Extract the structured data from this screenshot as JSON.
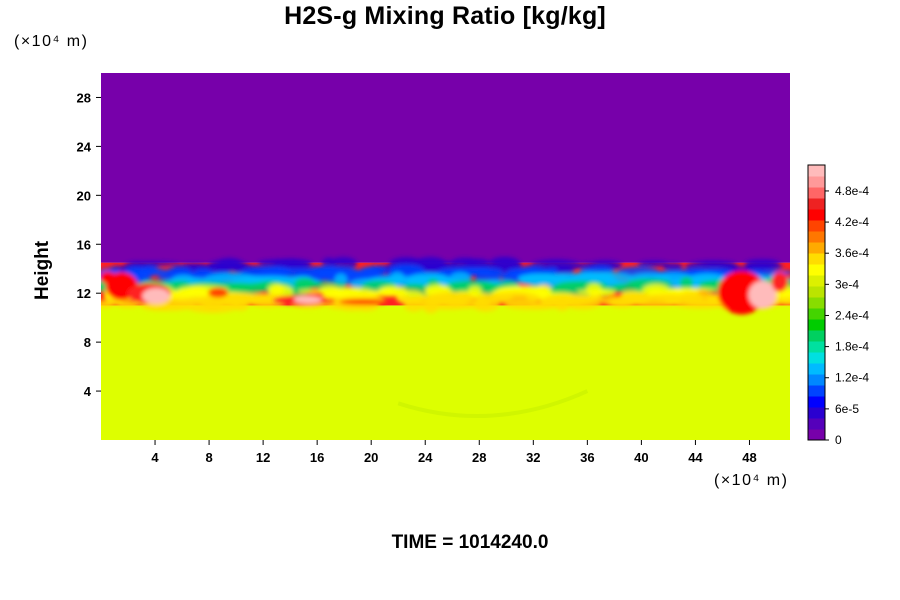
{
  "chart_data": {
    "type": "heatmap",
    "title": "H2S-g Mixing Ratio [kg/kg]",
    "ylabel": "Height",
    "xlabel": "",
    "x_unit": "(×10⁴ m)",
    "y_unit": "(×10⁴ m)",
    "xlim": [
      0,
      51
    ],
    "ylim": [
      0,
      30
    ],
    "x_ticks": [
      "4",
      "8",
      "12",
      "16",
      "20",
      "24",
      "28",
      "32",
      "36",
      "40",
      "44",
      "48"
    ],
    "y_ticks": [
      "4",
      "8",
      "12",
      "16",
      "20",
      "24",
      "28"
    ],
    "layers": [
      {
        "from_height": 0,
        "to_height": 11,
        "approx_value": 0.00034,
        "color": "#ddff00"
      },
      {
        "from_height": 11,
        "to_height": 14.5,
        "approx_value": "mixed 0 – 5e-4",
        "color": "#ff2020"
      },
      {
        "from_height": 14.5,
        "to_height": 30,
        "approx_value": 0,
        "color": "#7700aa"
      }
    ],
    "colorbar": {
      "min": 0,
      "max": 0.00053,
      "labels": [
        {
          "text": "4.8e-4",
          "value": 0.00048
        },
        {
          "text": "4.2e-4",
          "value": 0.00042
        },
        {
          "text": "3.6e-4",
          "value": 0.00036
        },
        {
          "text": "3e-4",
          "value": 0.0003
        },
        {
          "text": "2.4e-4",
          "value": 0.00024
        },
        {
          "text": "1.8e-4",
          "value": 0.00018
        },
        {
          "text": "1.2e-4",
          "value": 0.00012
        },
        {
          "text": "6e-5",
          "value": 6e-05
        },
        {
          "text": "0",
          "value": 0
        }
      ],
      "colors": [
        "#7700aa",
        "#5500bb",
        "#2a00d0",
        "#0000ff",
        "#0044ff",
        "#0088ff",
        "#00bbff",
        "#00e0e0",
        "#00e0a0",
        "#00d060",
        "#00cc00",
        "#44d400",
        "#88dd00",
        "#bbe400",
        "#ddf000",
        "#ffff00",
        "#ffdd00",
        "#ffaa00",
        "#ff7700",
        "#ff4400",
        "#ff0000",
        "#ee2222",
        "#ff6666",
        "#ff9999",
        "#ffbbbb"
      ]
    }
  },
  "time_label": "TIME = 1014240.0"
}
